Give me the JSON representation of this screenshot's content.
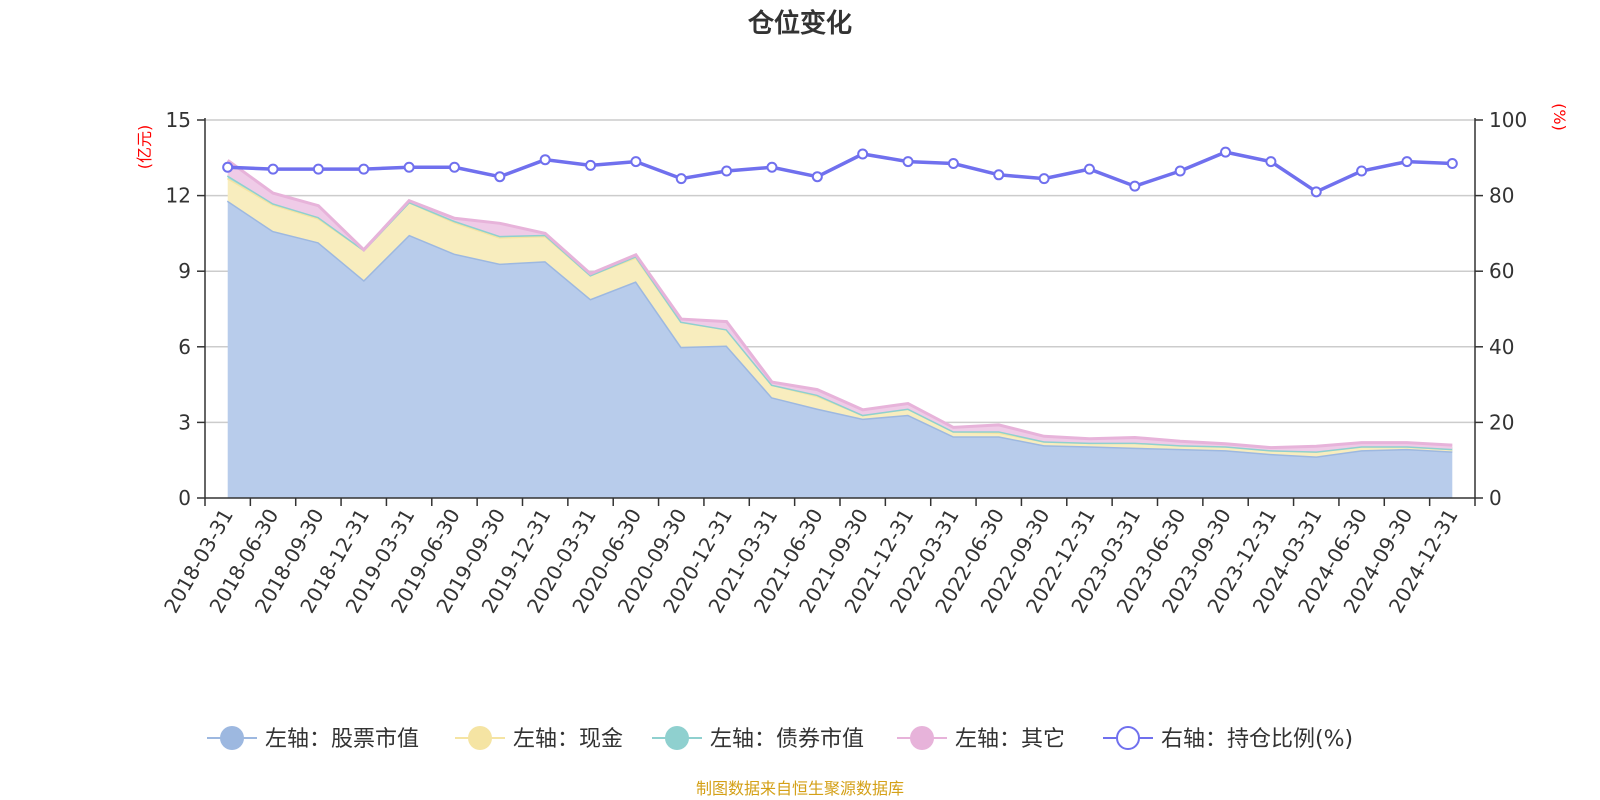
{
  "title": "仓位变化",
  "source": "制图数据来自恒生聚源数据库",
  "chart_data": {
    "type": "area",
    "title": "仓位变化",
    "left_axis": {
      "unit": "(亿元)",
      "ylim": [
        0,
        15
      ],
      "ticks": [
        "0",
        "3",
        "6",
        "9",
        "12",
        "15"
      ]
    },
    "right_axis": {
      "unit": "(%)",
      "ylim": [
        0,
        100
      ],
      "ticks": [
        "0",
        "20",
        "40",
        "60",
        "80",
        "100"
      ]
    },
    "categories": [
      "2018-03-31",
      "2018-06-30",
      "2018-09-30",
      "2018-12-31",
      "2019-03-31",
      "2019-06-30",
      "2019-09-30",
      "2019-12-31",
      "2020-03-31",
      "2020-06-30",
      "2020-09-30",
      "2020-12-31",
      "2021-03-31",
      "2021-06-30",
      "2021-09-30",
      "2021-12-31",
      "2022-03-31",
      "2022-06-30",
      "2022-09-30",
      "2022-12-31",
      "2023-03-31",
      "2023-06-30",
      "2023-09-30",
      "2023-12-31",
      "2024-03-31",
      "2024-06-30",
      "2024-09-30",
      "2024-12-31"
    ],
    "stacked_series": [
      {
        "name": "左轴：股票市值",
        "color": "#9db8e0",
        "fill": "#b8cceb",
        "values": [
          11.8,
          10.6,
          10.15,
          8.65,
          10.45,
          9.7,
          9.3,
          9.4,
          7.9,
          8.6,
          6.0,
          6.05,
          4.0,
          3.55,
          3.15,
          3.3,
          2.45,
          2.45,
          2.1,
          2.05,
          2.0,
          1.95,
          1.9,
          1.75,
          1.65,
          1.9,
          1.95,
          1.85
        ]
      },
      {
        "name": "左轴：现金",
        "color": "#f5e4a3",
        "fill": "#f8edbe",
        "values": [
          0.9,
          1.05,
          0.95,
          1.2,
          1.3,
          1.25,
          1.05,
          1.0,
          0.95,
          0.95,
          1.0,
          0.65,
          0.5,
          0.5,
          0.15,
          0.25,
          0.2,
          0.15,
          0.15,
          0.15,
          0.2,
          0.15,
          0.15,
          0.15,
          0.2,
          0.15,
          0.1,
          0.1
        ]
      },
      {
        "name": "左轴：债券市值",
        "color": "#8fd0cf",
        "fill": "#a9dcdb",
        "values": [
          0.1,
          0.05,
          0.05,
          0.0,
          0.0,
          0.05,
          0.05,
          0.05,
          0.0,
          0.05,
          0.0,
          0.0,
          0.0,
          0.05,
          0.0,
          0.0,
          0.0,
          0.05,
          0.0,
          0.0,
          0.0,
          0.0,
          0.0,
          0.0,
          0.0,
          0.0,
          0.0,
          0.0
        ]
      },
      {
        "name": "左轴：其它",
        "color": "#e7b3da",
        "fill": "#efcbe7",
        "values": [
          0.6,
          0.4,
          0.45,
          0.0,
          0.05,
          0.1,
          0.5,
          0.05,
          0.05,
          0.05,
          0.1,
          0.3,
          0.1,
          0.2,
          0.2,
          0.2,
          0.15,
          0.25,
          0.2,
          0.15,
          0.2,
          0.15,
          0.1,
          0.1,
          0.2,
          0.15,
          0.15,
          0.15
        ]
      }
    ],
    "line_series": {
      "name": "右轴：持仓比例(%)",
      "color": "#7070ee",
      "values": [
        87.5,
        87.0,
        87.0,
        87.0,
        87.5,
        87.5,
        85.0,
        89.5,
        88.0,
        89.0,
        84.5,
        86.5,
        87.5,
        85.0,
        91.0,
        89.0,
        88.5,
        85.5,
        84.5,
        87.0,
        82.5,
        86.5,
        91.5,
        89.0,
        81.0,
        86.5,
        89.0,
        88.5
      ]
    },
    "grid": true,
    "legend_position": "bottom"
  },
  "legend": [
    {
      "label": "左轴：股票市值",
      "color": "#9db8e0",
      "type": "dot"
    },
    {
      "label": "左轴：现金",
      "color": "#f5e4a3",
      "type": "dot"
    },
    {
      "label": "左轴：债券市值",
      "color": "#8fd0cf",
      "type": "dot"
    },
    {
      "label": "左轴：其它",
      "color": "#e7b3da",
      "type": "dot"
    },
    {
      "label": "右轴：持仓比例(%)",
      "color": "#7070ee",
      "type": "ring"
    }
  ]
}
